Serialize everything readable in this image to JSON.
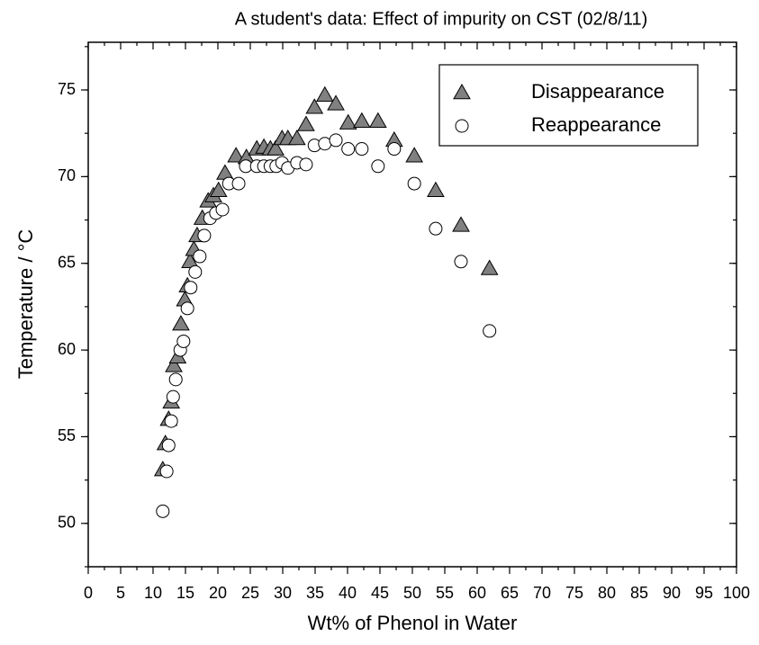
{
  "chart_data": {
    "type": "scatter",
    "title": "A student's data: Effect of impurity on CST (02/8/11)",
    "x_label": "Wt% of Phenol in Water",
    "y_label": "Temperature / °C",
    "xlim": [
      0,
      100
    ],
    "xticks": [
      0,
      5,
      10,
      15,
      20,
      25,
      30,
      35,
      40,
      45,
      50,
      55,
      60,
      65,
      70,
      75,
      80,
      85,
      90,
      95,
      100
    ],
    "ylim": [
      47.5,
      77.75
    ],
    "yticks": [
      50,
      55,
      60,
      65,
      70,
      75
    ],
    "legend": "top-right",
    "series": [
      {
        "name": "Disappearance",
        "color": "#808080",
        "marker": "triangle",
        "x": [
          11.5,
          11.9,
          12.4,
          12.8,
          13.2,
          13.8,
          14.3,
          14.9,
          15.3,
          15.7,
          16.3,
          16.8,
          17.6,
          18.5,
          19.3,
          20.1,
          21.1,
          22.8,
          24.4,
          26.0,
          27.1,
          28.1,
          28.9,
          29.9,
          30.8,
          32.2,
          33.6,
          34.9,
          36.5,
          38.2,
          40.1,
          42.2,
          44.7,
          47.2,
          50.3,
          53.6,
          57.5,
          61.9
        ],
        "values": [
          53.1,
          54.6,
          56.0,
          57.0,
          59.1,
          59.6,
          61.5,
          62.9,
          63.7,
          65.1,
          65.8,
          66.6,
          67.6,
          68.6,
          68.9,
          69.2,
          70.2,
          71.2,
          71.1,
          71.6,
          71.7,
          71.6,
          71.6,
          72.2,
          72.2,
          72.2,
          73.0,
          74.0,
          74.7,
          74.2,
          73.1,
          73.2,
          73.2,
          72.1,
          71.2,
          69.2,
          67.2,
          64.7
        ]
      },
      {
        "name": "Reappearance",
        "color": "#ffffff",
        "marker": "circle",
        "x": [
          11.5,
          12.1,
          12.4,
          12.8,
          13.1,
          13.5,
          14.2,
          14.7,
          15.3,
          15.8,
          16.5,
          17.2,
          17.9,
          18.8,
          19.7,
          20.7,
          21.7,
          23.2,
          24.3,
          26.0,
          27.1,
          28.1,
          29.0,
          29.9,
          30.8,
          32.2,
          33.6,
          34.9,
          36.5,
          38.2,
          40.1,
          42.2,
          44.7,
          47.2,
          50.3,
          53.6,
          57.5,
          61.9
        ],
        "values": [
          50.7,
          53.0,
          54.5,
          55.9,
          57.3,
          58.3,
          60.0,
          60.5,
          62.4,
          63.6,
          64.5,
          65.4,
          66.6,
          67.6,
          67.9,
          68.1,
          69.6,
          69.6,
          70.6,
          70.6,
          70.6,
          70.6,
          70.6,
          70.8,
          70.5,
          70.8,
          70.7,
          71.8,
          71.9,
          72.1,
          71.6,
          71.6,
          70.6,
          71.6,
          69.6,
          67.0,
          65.1,
          61.1
        ]
      }
    ]
  }
}
